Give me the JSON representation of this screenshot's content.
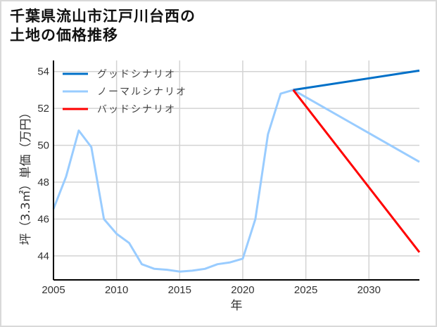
{
  "title": "千葉県流山市江戸川台西の\n土地の価格推移",
  "chart_data": {
    "type": "line",
    "title": "千葉県流山市江戸川台西の土地の価格推移",
    "xlabel": "年",
    "ylabel": "坪（3.3㎡）単価（万円）",
    "xlim": [
      2005,
      2034
    ],
    "ylim": [
      42.7,
      54.6
    ],
    "xticks": [
      2005,
      2010,
      2015,
      2020,
      2025,
      2030
    ],
    "yticks": [
      44,
      46,
      48,
      50,
      52,
      54
    ],
    "grid": true,
    "legend_position": "upper left",
    "series": [
      {
        "name": "グッドシナリオ",
        "color": "#0070c8",
        "x": [
          2024,
          2034
        ],
        "values": [
          53.0,
          54.05
        ]
      },
      {
        "name": "ノーマルシナリオ",
        "color": "#99ccff",
        "x": [
          2005,
          2006,
          2007,
          2008,
          2009,
          2010,
          2011,
          2012,
          2013,
          2014,
          2015,
          2016,
          2017,
          2018,
          2019,
          2020,
          2021,
          2022,
          2023,
          2024,
          2034
        ],
        "values": [
          46.55,
          48.3,
          50.8,
          49.9,
          46.0,
          45.2,
          44.7,
          43.55,
          43.3,
          43.25,
          43.15,
          43.2,
          43.3,
          43.55,
          43.65,
          43.85,
          46.0,
          50.6,
          52.8,
          53.0,
          49.1
        ]
      },
      {
        "name": "バッドシナリオ",
        "color": "#ff0000",
        "x": [
          2024,
          2034
        ],
        "values": [
          53.0,
          44.2
        ]
      }
    ]
  }
}
